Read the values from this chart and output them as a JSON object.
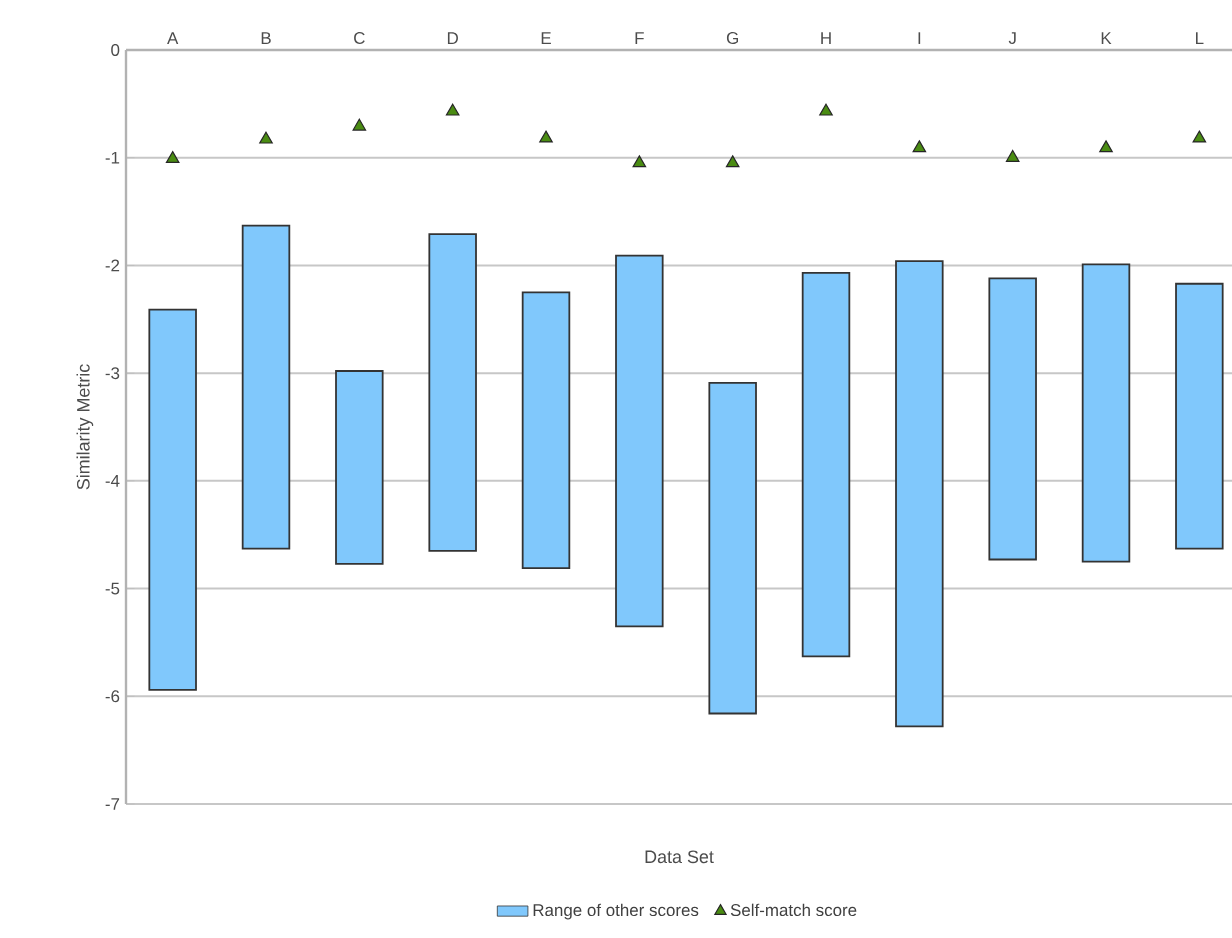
{
  "chart_data": {
    "type": "bar",
    "xlabel": "Data Set",
    "ylabel": "Similarity Metric",
    "categories": [
      "A",
      "B",
      "C",
      "D",
      "E",
      "F",
      "G",
      "H",
      "I",
      "J",
      "K",
      "L"
    ],
    "ylim": [
      -7,
      0
    ],
    "yticks": [
      0,
      -1,
      -2,
      -3,
      -4,
      -5,
      -6,
      -7
    ],
    "grid": "y",
    "legend": "bottom",
    "series": [
      {
        "name": "Range of other scores",
        "color": "#80c8fc",
        "base": [
          -5.94,
          -4.63,
          -4.77,
          -4.65,
          -4.81,
          -5.35,
          -6.16,
          -5.63,
          -6.28,
          -4.73,
          -4.75,
          -4.63
        ],
        "values": [
          3.53,
          3.0,
          1.79,
          2.94,
          2.56,
          3.44,
          3.07,
          3.56,
          4.32,
          2.61,
          2.76,
          2.46
        ]
      },
      {
        "name": "Self-match score",
        "type": "scatter",
        "color": "#4a8c12",
        "marker": "triangle",
        "x": [
          "A",
          "B",
          "C",
          "D",
          "E",
          "F",
          "G",
          "H",
          "I",
          "J",
          "K",
          "L"
        ],
        "values": [
          -1.01,
          -0.83,
          -0.71,
          -0.57,
          -0.82,
          -1.05,
          -1.05,
          -0.57,
          -0.91,
          -1.0,
          -0.91,
          -0.82
        ]
      }
    ]
  }
}
